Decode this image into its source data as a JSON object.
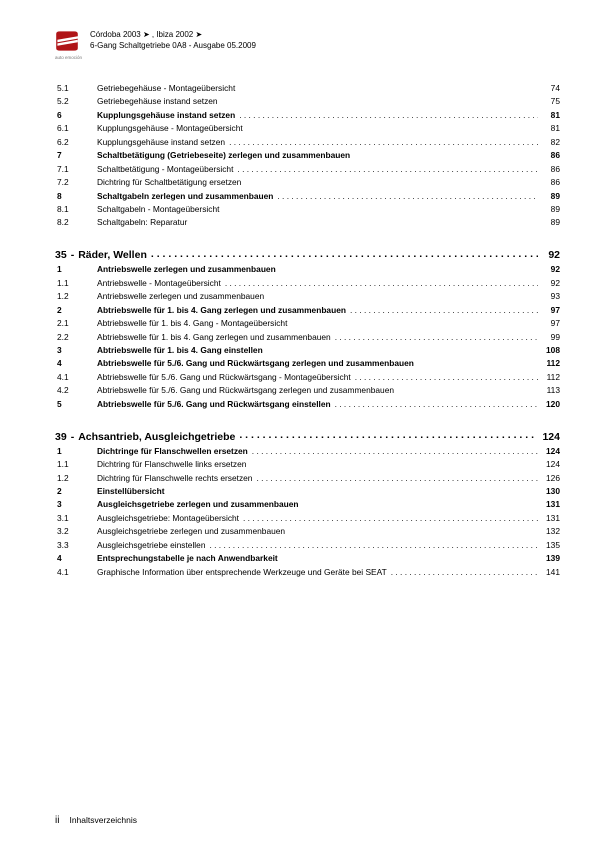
{
  "header": {
    "brand_sub": "auto emoción",
    "line1": "Córdoba 2003 ➤ , Ibiza 2002 ➤",
    "line2": "6-Gang Schaltgetriebe 0A8 - Ausgabe 05.2009",
    "logo_fill": "#b01518"
  },
  "sections": [
    {
      "type": "group",
      "entries": [
        {
          "n": "5.1",
          "t": "Getriebegehäuse - Montageübersicht",
          "p": "74"
        },
        {
          "n": "5.2",
          "t": "Getriebegehäuse instand setzen",
          "p": "75"
        },
        {
          "n": "6",
          "t": "Kupplungsgehäuse instand setzen",
          "p": "81",
          "bold": true
        },
        {
          "n": "6.1",
          "t": "Kupplungsgehäuse - Montageübersicht",
          "p": "81"
        },
        {
          "n": "6.2",
          "t": "Kupplungsgehäuse instand setzen",
          "p": "82"
        },
        {
          "n": "7",
          "t": "Schaltbetätigung (Getriebeseite) zerlegen und zusammenbauen",
          "p": "86",
          "bold": true
        },
        {
          "n": "7.1",
          "t": "Schaltbetätigung - Montageübersicht",
          "p": "86"
        },
        {
          "n": "7.2",
          "t": "Dichtring für Schaltbetätigung ersetzen",
          "p": "86"
        },
        {
          "n": "8",
          "t": "Schaltgabeln zerlegen und zusammenbauen",
          "p": "89",
          "bold": true
        },
        {
          "n": "8.1",
          "t": "Schaltgabeln - Montageübersicht",
          "p": "89"
        },
        {
          "n": "8.2",
          "t": "Schaltgabeln: Reparatur",
          "p": "89"
        }
      ]
    },
    {
      "type": "section",
      "sec": "35",
      "title": "Räder, Wellen",
      "page": "92",
      "entries": [
        {
          "n": "1",
          "t": "Antriebswelle zerlegen und zusammenbauen",
          "p": "92",
          "bold": true
        },
        {
          "n": "1.1",
          "t": "Antriebswelle - Montageübersicht",
          "p": "92"
        },
        {
          "n": "1.2",
          "t": "Antriebswelle zerlegen und zusammenbauen",
          "p": "93"
        },
        {
          "n": "2",
          "t": "Abtriebswelle für 1. bis 4. Gang zerlegen und zusammenbauen",
          "p": "97",
          "bold": true
        },
        {
          "n": "2.1",
          "t": "Abtriebswelle für 1. bis 4. Gang - Montageübersicht",
          "p": "97"
        },
        {
          "n": "2.2",
          "t": "Abtriebswelle für 1. bis 4. Gang zerlegen und zusammenbauen",
          "p": "99"
        },
        {
          "n": "3",
          "t": "Abtriebswelle für 1. bis 4. Gang einstellen",
          "p": "108",
          "bold": true
        },
        {
          "n": "4",
          "t": "Abtriebswelle für 5./6. Gang und Rückwärtsgang zerlegen und zusammenbauen",
          "p": "112",
          "bold": true
        },
        {
          "n": "4.1",
          "t": "Abtriebswelle für 5./6. Gang und Rückwärtsgang - Montageübersicht",
          "p": "112"
        },
        {
          "n": "4.2",
          "t": "Abtriebswelle für 5./6. Gang und Rückwärtsgang zerlegen und zusammenbauen",
          "p": "113"
        },
        {
          "n": "5",
          "t": "Abtriebswelle für 5./6. Gang und Rückwärtsgang einstellen",
          "p": "120",
          "bold": true
        }
      ]
    },
    {
      "type": "section",
      "sec": "39",
      "title": "Achsantrieb, Ausgleichgetriebe",
      "page": "124",
      "entries": [
        {
          "n": "1",
          "t": "Dichtringe für Flanschwellen ersetzen",
          "p": "124",
          "bold": true
        },
        {
          "n": "1.1",
          "t": "Dichtring für Flanschwelle links ersetzen",
          "p": "124"
        },
        {
          "n": "1.2",
          "t": "Dichtring für Flanschwelle rechts ersetzen",
          "p": "126"
        },
        {
          "n": "2",
          "t": "Einstellübersicht",
          "p": "130",
          "bold": true
        },
        {
          "n": "3",
          "t": "Ausgleichsgetriebe zerlegen und zusammenbauen",
          "p": "131",
          "bold": true
        },
        {
          "n": "3.1",
          "t": "Ausgleichsgetriebe: Montageübersicht",
          "p": "131"
        },
        {
          "n": "3.2",
          "t": "Ausgleichsgetriebe zerlegen und zusammenbauen",
          "p": "132"
        },
        {
          "n": "3.3",
          "t": "Ausgleichsgetriebe einstellen",
          "p": "135"
        },
        {
          "n": "4",
          "t": "Entsprechungstabelle je nach Anwendbarkeit",
          "p": "139",
          "bold": true
        },
        {
          "n": "4.1",
          "t": "Graphische Information über entsprechende Werkzeuge und Geräte bei SEAT",
          "p": "141"
        }
      ]
    }
  ],
  "footer": {
    "page_roman": "ii",
    "label": "Inhaltsverzeichnis"
  }
}
